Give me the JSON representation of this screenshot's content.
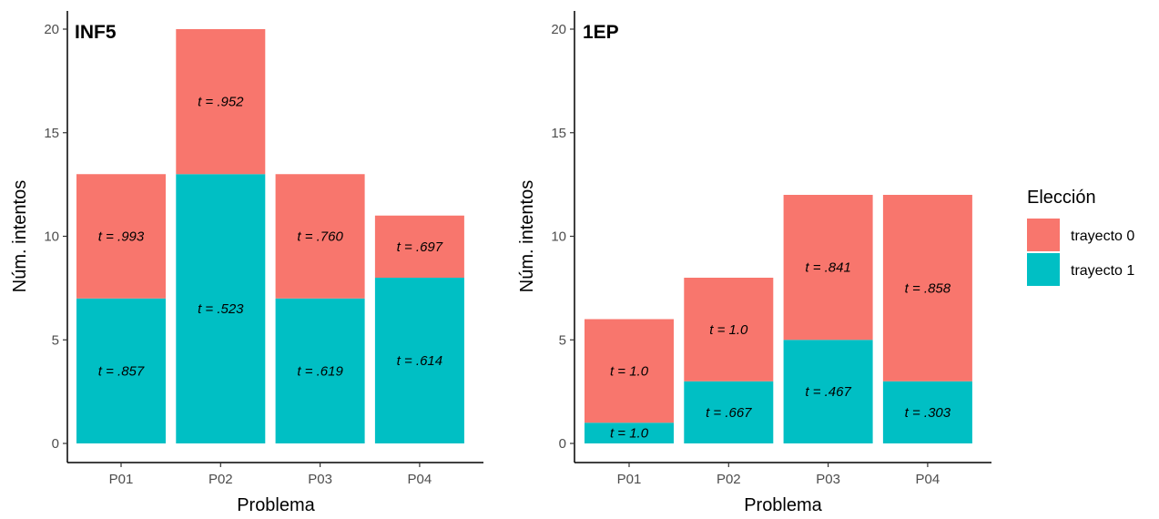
{
  "chart_data": [
    {
      "type": "bar",
      "stacked": true,
      "title": "INF5",
      "xlabel": "Problema",
      "ylabel": "Núm. intentos",
      "ylim": [
        0,
        20
      ],
      "yticks": [
        0,
        5,
        10,
        15,
        20
      ],
      "categories": [
        "P01",
        "P02",
        "P03",
        "P04"
      ],
      "series": [
        {
          "name": "trayecto 1",
          "values": [
            7,
            13,
            7,
            8
          ],
          "labels": [
            "t = .857",
            "t = .523",
            "t = .619",
            "t = .614"
          ]
        },
        {
          "name": "trayecto 0",
          "values": [
            6,
            7,
            6,
            3
          ],
          "labels": [
            "t = .993",
            "t = .952",
            "t = .760",
            "t = .697"
          ]
        }
      ],
      "grid": false
    },
    {
      "type": "bar",
      "stacked": true,
      "title": "1EP",
      "xlabel": "Problema",
      "ylabel": "Núm. intentos",
      "ylim": [
        0,
        20
      ],
      "yticks": [
        0,
        5,
        10,
        15,
        20
      ],
      "categories": [
        "P01",
        "P02",
        "P03",
        "P04"
      ],
      "series": [
        {
          "name": "trayecto 1",
          "values": [
            1,
            3,
            5,
            3
          ],
          "labels": [
            "t = 1.0",
            "t = .667",
            "t = .467",
            "t = .303"
          ]
        },
        {
          "name": "trayecto 0",
          "values": [
            5,
            5,
            7,
            9
          ],
          "labels": [
            "t = 1.0",
            "t = 1.0",
            "t = .841",
            "t = .858"
          ]
        }
      ],
      "grid": false
    }
  ],
  "legend": {
    "title": "Elección",
    "placement": "right",
    "items": [
      {
        "label": "trayecto 0",
        "color": "#F8766D"
      },
      {
        "label": "trayecto 1",
        "color": "#00BFC4"
      }
    ]
  },
  "colors": {
    "trayecto 0": "#F8766D",
    "trayecto 1": "#00BFC4"
  }
}
